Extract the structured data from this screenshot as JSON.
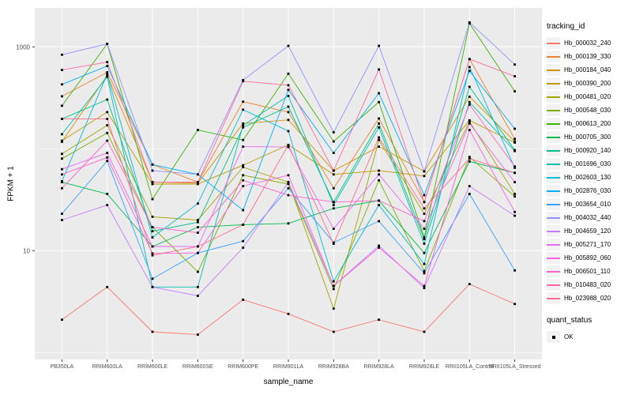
{
  "figure": {
    "x_axis_title": "sample_name",
    "y_axis_title": "FPKM + 1",
    "colors": {
      "panel_bg": "#EBEBEB",
      "grid": "#FFFFFF",
      "tick_mark": "#333333",
      "tick_text": "#4D4D4D",
      "key_bg": "#F2F2F2",
      "point": "#000000"
    }
  },
  "legend": {
    "tracking_title": "tracking_id",
    "quant_title": "quant_status",
    "quant_items": [
      {
        "label": "OK"
      }
    ]
  },
  "chart_data": {
    "type": "line",
    "title": "",
    "xlabel": "sample_name",
    "ylabel": "FPKM + 1",
    "y_scale": "log10",
    "ylim": [
      1.1,
      2400
    ],
    "y_ticks_labeled": [
      10,
      1000
    ],
    "y_minor_gridlines": [
      1,
      100
    ],
    "grid": true,
    "legend_position": "right",
    "marker": "black-square",
    "categories": [
      "PB350LA",
      "RRIM600LA",
      "RRIM600LE",
      "RRIM600SE",
      "RRIM600PE",
      "RRIM901LA",
      "RRIM928BA",
      "RRIM928LA",
      "RRIM928LE",
      "RRII105LA_Control",
      "RRII105LA_Stressed"
    ],
    "series": [
      {
        "name": "Hb_000032_240",
        "color": "#F8766D",
        "values": [
          2.1,
          4.4,
          1.6,
          1.5,
          3.3,
          2.4,
          1.6,
          2.1,
          1.6,
          4.7,
          3.0
        ]
      },
      {
        "name": "Hb_000139_330",
        "color": "#EA8331",
        "values": [
          327,
          563,
          70,
          47,
          290,
          229,
          41,
          198,
          30,
          758,
          125
        ]
      },
      {
        "name": "Hb_000184_040",
        "color": "#D89000",
        "values": [
          117,
          525,
          47,
          46,
          177,
          192,
          61,
          105,
          60,
          324,
          118
        ]
      },
      {
        "name": "Hb_000390_200",
        "color": "#C09B00",
        "values": [
          120,
          229,
          45,
          45,
          69,
          109,
          56,
          61,
          54,
          190,
          115
        ]
      },
      {
        "name": "Hb_000481_020",
        "color": "#A3A500",
        "values": [
          89,
          170,
          21.5,
          20,
          66,
          47,
          2.7,
          122,
          23,
          185,
          36
        ]
      },
      {
        "name": "Hb_000548_030",
        "color": "#7CAE00",
        "values": [
          80,
          143,
          17,
          6.2,
          55,
          45,
          4.2,
          49,
          6.3,
          83,
          34
        ]
      },
      {
        "name": "Hb_000613_200",
        "color": "#39B600",
        "values": [
          264,
          1070,
          32,
          153,
          122,
          545,
          118,
          287,
          13.5,
          1700,
          366
        ]
      },
      {
        "name": "Hb_000705_300",
        "color": "#00BB4E",
        "values": [
          47,
          36,
          11,
          17,
          18,
          18.5,
          26,
          31,
          9.5,
          75,
          58
        ]
      },
      {
        "name": "Hb_000920_140",
        "color": "#00C087",
        "values": [
          196,
          304,
          15.5,
          19,
          162,
          259,
          30,
          177,
          13,
          405,
          97
        ]
      },
      {
        "name": "Hb_001696_030",
        "color": "#00C0AF",
        "values": [
          139,
          508,
          4.4,
          4.4,
          170,
          330,
          28,
          162,
          11.7,
          287,
          95
        ]
      },
      {
        "name": "Hb_002603_130",
        "color": "#00BCD8",
        "values": [
          48,
          540,
          13.5,
          29,
          242,
          149,
          5.0,
          28,
          7.4,
          634,
          65
        ]
      },
      {
        "name": "Hb_002876_030",
        "color": "#00B0F6",
        "values": [
          428,
          648,
          70,
          56,
          25,
          378,
          91,
          351,
          35,
          580,
          157
        ]
      },
      {
        "name": "Hb_003654_010",
        "color": "#35A2FF",
        "values": [
          23,
          76,
          5.3,
          9.5,
          12.4,
          41,
          12,
          19.5,
          6,
          36,
          6.4
        ]
      },
      {
        "name": "Hb_004032_440",
        "color": "#9590FF",
        "values": [
          836,
          1070,
          61,
          56,
          472,
          1023,
          145,
          1023,
          60,
          1740,
          670
        ]
      },
      {
        "name": "Hb_004659_120",
        "color": "#C77CFF",
        "values": [
          20,
          28,
          4.4,
          3.6,
          10.7,
          47,
          4.5,
          11.2,
          4.3,
          43,
          22
        ]
      },
      {
        "name": "Hb_005271_170",
        "color": "#E76BF3",
        "values": [
          63,
          91,
          11,
          11,
          105,
          104,
          16.4,
          56,
          16.4,
          177,
          47
        ]
      },
      {
        "name": "Hb_005892_060",
        "color": "#FA62DB",
        "values": [
          56,
          82,
          9.4,
          9.5,
          43,
          55,
          4.5,
          10.7,
          4.5,
          153,
          24
        ]
      },
      {
        "name": "Hb_006501_110",
        "color": "#FF61CC",
        "values": [
          41,
          120,
          17,
          15,
          49,
          35,
          30,
          31,
          19.5,
          271,
          67
        ]
      },
      {
        "name": "Hb_010483_020",
        "color": "#FF67A4",
        "values": [
          593,
          709,
          47,
          47,
          460,
          420,
          61,
          600,
          30,
          758,
          515
        ]
      },
      {
        "name": "Hb_023988_020",
        "color": "#FF6C91",
        "values": [
          196,
          196,
          9,
          11,
          18,
          109,
          11.7,
          129,
          26,
          80,
          58
        ]
      }
    ]
  }
}
